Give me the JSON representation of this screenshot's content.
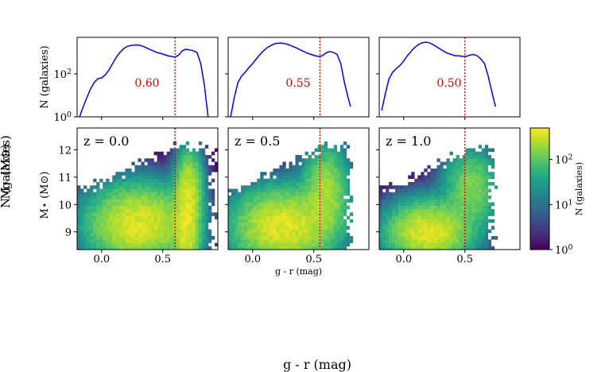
{
  "figure": {
    "supxlabel": "g - r (mag)",
    "supylabel_overlap": [
      "N (galaxies)",
      "M⋆ (M⊙)"
    ]
  },
  "chart_data": [
    {
      "type": "line",
      "panel": "hist-z0",
      "ylabel": "N (galaxies)",
      "yscale": "log",
      "ylim": [
        1,
        5000
      ],
      "xlim": [
        -0.2,
        0.95
      ],
      "yticks": [
        "10^0",
        "10^2"
      ],
      "x": [
        -0.18,
        -0.15,
        -0.12,
        -0.09,
        -0.06,
        -0.03,
        0.0,
        0.03,
        0.06,
        0.09,
        0.12,
        0.15,
        0.18,
        0.21,
        0.24,
        0.27,
        0.3,
        0.33,
        0.36,
        0.39,
        0.42,
        0.45,
        0.48,
        0.51,
        0.54,
        0.57,
        0.6,
        0.63,
        0.66,
        0.69,
        0.72,
        0.75,
        0.78,
        0.81,
        0.84,
        0.87
      ],
      "y": [
        1,
        3,
        8,
        20,
        40,
        60,
        65,
        90,
        150,
        300,
        600,
        1000,
        1500,
        1900,
        2100,
        2200,
        2200,
        2000,
        1700,
        1400,
        1200,
        1000,
        900,
        800,
        700,
        650,
        600,
        750,
        1200,
        1400,
        1300,
        1200,
        1000,
        300,
        30,
        1
      ],
      "vline": 0.6,
      "annotation": "0.60",
      "line_color": "#0000ff",
      "vline_color": "#dd0000"
    },
    {
      "type": "line",
      "panel": "hist-z05",
      "yscale": "log",
      "ylim": [
        1,
        5000
      ],
      "xlim": [
        -0.2,
        0.95
      ],
      "x": [
        -0.18,
        -0.15,
        -0.12,
        -0.09,
        -0.06,
        -0.03,
        0.0,
        0.03,
        0.06,
        0.09,
        0.12,
        0.15,
        0.18,
        0.21,
        0.24,
        0.27,
        0.3,
        0.33,
        0.36,
        0.39,
        0.42,
        0.45,
        0.48,
        0.51,
        0.54,
        0.57,
        0.6,
        0.63,
        0.66,
        0.69,
        0.72,
        0.75,
        0.78,
        0.8
      ],
      "y": [
        1,
        8,
        40,
        80,
        120,
        200,
        300,
        500,
        800,
        1200,
        1700,
        2100,
        2500,
        2700,
        2700,
        2500,
        2200,
        1900,
        1600,
        1300,
        1100,
        900,
        800,
        700,
        650,
        700,
        950,
        1100,
        1000,
        800,
        300,
        40,
        8,
        3
      ],
      "vline": 0.55,
      "annotation": "0.55",
      "line_color": "#0000ff",
      "vline_color": "#dd0000"
    },
    {
      "type": "line",
      "panel": "hist-z10",
      "yscale": "log",
      "ylim": [
        1,
        5000
      ],
      "xlim": [
        -0.2,
        0.95
      ],
      "x": [
        -0.18,
        -0.15,
        -0.12,
        -0.09,
        -0.06,
        -0.03,
        0.0,
        0.03,
        0.06,
        0.09,
        0.12,
        0.15,
        0.18,
        0.21,
        0.24,
        0.27,
        0.3,
        0.33,
        0.36,
        0.39,
        0.42,
        0.45,
        0.48,
        0.51,
        0.54,
        0.57,
        0.6,
        0.63,
        0.66,
        0.69,
        0.72,
        0.75
      ],
      "y": [
        2,
        12,
        60,
        120,
        180,
        250,
        400,
        700,
        1100,
        1700,
        2300,
        2800,
        3000,
        2800,
        2300,
        1800,
        1400,
        1100,
        900,
        800,
        700,
        700,
        650,
        650,
        750,
        800,
        700,
        500,
        300,
        80,
        15,
        3
      ],
      "vline": 0.5,
      "annotation": "0.50",
      "line_color": "#0000ff",
      "vline_color": "#dd0000"
    },
    {
      "type": "heatmap",
      "panel": "cmd-z0",
      "label": "z = 0.0",
      "ylabel": "M⋆ (M⊙)",
      "xlim": [
        -0.2,
        0.95
      ],
      "ylim": [
        8.35,
        12.8
      ],
      "xticks": [
        "0.0",
        "0.5"
      ],
      "yticks": [
        "9",
        "10",
        "11",
        "12"
      ],
      "vline": 0.6,
      "blobs": [
        {
          "x": 0.3,
          "y": 9.3,
          "sx": 0.22,
          "sy": 0.75,
          "w": 1.0
        },
        {
          "x": 0.7,
          "y": 9.3,
          "sx": 0.06,
          "sy": 1.1,
          "w": 0.85
        },
        {
          "x": 0.72,
          "y": 10.8,
          "sx": 0.06,
          "sy": 0.7,
          "w": 0.45
        }
      ]
    },
    {
      "type": "heatmap",
      "panel": "cmd-z05",
      "label": "z = 0.5",
      "xlim": [
        -0.2,
        0.95
      ],
      "ylim": [
        8.35,
        12.8
      ],
      "xticks": [
        "0.0",
        "0.5"
      ],
      "xlabel": "g - r (mag)",
      "vline": 0.55,
      "blobs": [
        {
          "x": 0.25,
          "y": 9.2,
          "sx": 0.22,
          "sy": 0.75,
          "w": 1.0
        },
        {
          "x": 0.6,
          "y": 10.5,
          "sx": 0.1,
          "sy": 0.9,
          "w": 0.55
        }
      ]
    },
    {
      "type": "heatmap",
      "panel": "cmd-z10",
      "label": "z = 1.0",
      "xlim": [
        -0.2,
        0.95
      ],
      "ylim": [
        8.35,
        12.8
      ],
      "xticks": [
        "0.0",
        "0.5"
      ],
      "vline": 0.5,
      "blobs": [
        {
          "x": 0.2,
          "y": 9.0,
          "sx": 0.18,
          "sy": 0.6,
          "w": 1.0
        },
        {
          "x": 0.55,
          "y": 10.6,
          "sx": 0.12,
          "sy": 0.8,
          "w": 0.4
        }
      ]
    },
    {
      "type": "colorbar",
      "label": "N (galaxies)",
      "scale": "log",
      "ticks": [
        "10^0",
        "10^1",
        "10^2"
      ],
      "colormap": [
        "#440154",
        "#482878",
        "#3e4989",
        "#31688e",
        "#26828e",
        "#1f9e89",
        "#35b779",
        "#6ece58",
        "#b5de2b",
        "#fde725"
      ]
    }
  ]
}
